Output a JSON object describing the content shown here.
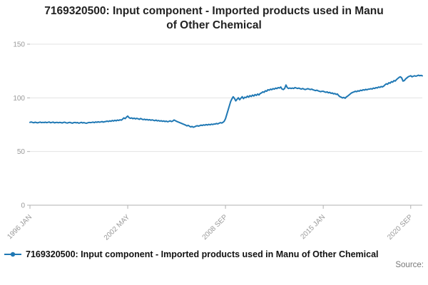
{
  "title": {
    "text": "7169320500: Input component - Imported products used in Manu of Other Chemical"
  },
  "legend": {
    "label": "7169320500: Input component - Imported products used in Manu of Other Chemical"
  },
  "source": {
    "label": "Source:"
  },
  "colors": {
    "accent": "#1f78b4",
    "grid": "#e3e3e3",
    "axis": "#b0b0b0",
    "tick_text": "#999999"
  },
  "chart_data": {
    "type": "line",
    "title": "7169320500: Input component - Imported products used in Manu of Other Chemical",
    "series_name": "7169320500: Input component - Imported products used in Manu of Other Chemical",
    "x_start": "1996-01",
    "frequency": "monthly",
    "xlabel": "",
    "ylabel": "",
    "ylim": [
      0,
      150
    ],
    "y_ticks": [
      0,
      50,
      100,
      150
    ],
    "x_tick_labels": [
      "1996 JAN",
      "2002 MAY",
      "2008 SEP",
      "2015 JAN",
      "2020 SEP"
    ],
    "x_tick_indices": [
      0,
      76,
      152,
      228,
      296
    ],
    "grid": true,
    "legend_position": "bottom",
    "values": [
      77.2,
      77.5,
      77.1,
      76.8,
      77.3,
      77.0,
      76.7,
      77.1,
      77.4,
      76.9,
      77.2,
      77.0,
      77.3,
      76.9,
      77.2,
      77.5,
      76.8,
      77.1,
      77.4,
      76.7,
      77.0,
      77.2,
      76.8,
      77.1,
      77.0,
      76.6,
      77.1,
      77.3,
      76.8,
      76.5,
      76.9,
      77.2,
      76.7,
      76.4,
      76.9,
      77.1,
      76.7,
      77.0,
      76.4,
      76.8,
      77.2,
      76.6,
      77.0,
      76.5,
      76.3,
      76.8,
      77.1,
      76.9,
      77.1,
      77.4,
      76.9,
      77.6,
      77.2,
      77.7,
      77.3,
      77.5,
      77.9,
      77.4,
      77.7,
      78.0,
      78.3,
      77.9,
      78.6,
      78.1,
      78.9,
      78.4,
      79.1,
      78.6,
      79.3,
      78.9,
      79.6,
      79.2,
      80.1,
      81.4,
      80.6,
      82.0,
      83.0,
      81.6,
      80.9,
      81.3,
      80.6,
      81.1,
      80.4,
      80.9,
      80.5,
      80.0,
      80.8,
      80.2,
      79.7,
      80.1,
      79.5,
      79.9,
      79.3,
      79.7,
      79.1,
      79.5,
      79.1,
      78.7,
      79.3,
      78.5,
      78.9,
      78.3,
      78.7,
      78.1,
      78.5,
      77.9,
      78.3,
      77.7,
      78.1,
      78.6,
      77.9,
      78.4,
      79.4,
      78.7,
      78.1,
      77.6,
      77.1,
      76.6,
      76.1,
      75.6,
      75.1,
      74.6,
      73.9,
      74.4,
      73.6,
      72.9,
      73.4,
      72.6,
      73.1,
      73.6,
      74.1,
      73.7,
      74.1,
      74.6,
      74.3,
      74.9,
      74.5,
      75.1,
      74.7,
      75.3,
      74.9,
      75.5,
      75.1,
      75.6,
      75.6,
      76.1,
      75.7,
      76.3,
      76.9,
      76.5,
      77.1,
      78.2,
      80.5,
      84.5,
      88.5,
      92.5,
      96.5,
      99.0,
      101.0,
      99.5,
      97.2,
      98.6,
      100.1,
      98.2,
      99.6,
      101.1,
      99.2,
      100.6,
      100.2,
      101.6,
      100.7,
      102.1,
      101.2,
      102.6,
      101.7,
      103.1,
      102.2,
      103.6,
      102.7,
      104.1,
      104.6,
      105.6,
      105.1,
      106.6,
      106.1,
      107.6,
      107.1,
      108.1,
      107.6,
      108.6,
      108.1,
      109.1,
      108.6,
      109.6,
      109.1,
      110.1,
      108.2,
      107.7,
      108.7,
      112.0,
      109.6,
      108.7,
      109.2,
      108.7,
      109.1,
      108.7,
      109.6,
      109.1,
      108.7,
      109.1,
      108.6,
      108.2,
      108.7,
      108.1,
      107.7,
      108.1,
      108.6,
      108.1,
      107.7,
      108.1,
      107.6,
      107.1,
      106.7,
      107.1,
      106.6,
      106.1,
      105.7,
      106.1,
      106.1,
      105.6,
      105.1,
      105.6,
      104.7,
      105.1,
      104.2,
      104.6,
      103.7,
      104.1,
      103.2,
      103.6,
      102.1,
      101.1,
      100.6,
      99.9,
      100.4,
      99.6,
      100.9,
      101.6,
      102.6,
      103.6,
      104.6,
      105.1,
      105.6,
      106.1,
      105.7,
      106.6,
      106.2,
      107.1,
      106.7,
      107.6,
      107.2,
      107.9,
      107.5,
      108.1,
      108.1,
      108.6,
      108.2,
      109.1,
      108.7,
      109.6,
      109.2,
      110.1,
      109.7,
      110.6,
      110.2,
      110.9,
      112.1,
      113.1,
      112.6,
      114.1,
      113.6,
      115.1,
      114.6,
      116.1,
      115.6,
      117.1,
      118.1,
      119.1,
      119.6,
      118.6,
      115.6,
      116.1,
      117.6,
      118.6,
      119.6,
      120.1,
      120.6,
      119.6,
      120.1,
      120.6,
      120.1,
      120.6,
      121.1,
      120.6,
      120.9,
      120.5
    ]
  }
}
